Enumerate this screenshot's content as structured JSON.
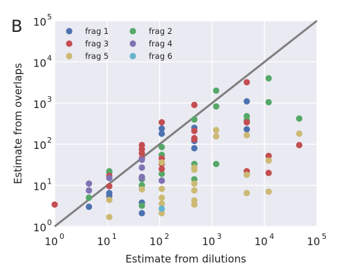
{
  "panel_label": "B",
  "chart_data": {
    "type": "scatter",
    "xlabel": "Estimate from dilutions",
    "ylabel": "Estimate from overlaps",
    "xscale": "log",
    "yscale": "log",
    "xlim": [
      1,
      100000
    ],
    "ylim": [
      1,
      100000
    ],
    "x_ticks": [
      {
        "base": "10",
        "exp": "0"
      },
      {
        "base": "10",
        "exp": "1"
      },
      {
        "base": "10",
        "exp": "2"
      },
      {
        "base": "10",
        "exp": "3"
      },
      {
        "base": "10",
        "exp": "4"
      },
      {
        "base": "10",
        "exp": "5"
      }
    ],
    "y_ticks": [
      {
        "base": "10",
        "exp": "0"
      },
      {
        "base": "10",
        "exp": "1"
      },
      {
        "base": "10",
        "exp": "2"
      },
      {
        "base": "10",
        "exp": "3"
      },
      {
        "base": "10",
        "exp": "4"
      },
      {
        "base": "10",
        "exp": "5"
      }
    ],
    "grid": true,
    "legend_position": "top-left",
    "reference_line": {
      "type": "identity",
      "color": "#808080"
    },
    "series": [
      {
        "name": "frag 1",
        "color": "#4C72B0",
        "points": [
          [
            4.5,
            3.0
          ],
          [
            11,
            5.5
          ],
          [
            11,
            6.5
          ],
          [
            46,
            2.1
          ],
          [
            46,
            3.8
          ],
          [
            110,
            180
          ],
          [
            110,
            240
          ],
          [
            110,
            13
          ],
          [
            460,
            80
          ],
          [
            460,
            120
          ],
          [
            460,
            250
          ],
          [
            4600,
            1100
          ],
          [
            4600,
            230
          ]
        ]
      },
      {
        "name": "frag 2",
        "color": "#55A868",
        "points": [
          [
            4.5,
            5
          ],
          [
            11,
            21
          ],
          [
            11,
            22
          ],
          [
            46,
            3.2
          ],
          [
            46,
            10
          ],
          [
            46,
            14
          ],
          [
            110,
            85
          ],
          [
            110,
            55
          ],
          [
            110,
            19
          ],
          [
            460,
            33
          ],
          [
            460,
            14
          ],
          [
            460,
            400
          ],
          [
            1200,
            2000
          ],
          [
            1200,
            830
          ],
          [
            1200,
            33
          ],
          [
            4600,
            480
          ],
          [
            4600,
            380
          ],
          [
            12000,
            4000
          ],
          [
            12000,
            1050
          ],
          [
            46000,
            420
          ]
        ]
      },
      {
        "name": "frag 3",
        "color": "#C44E52",
        "points": [
          [
            1,
            3.4
          ],
          [
            11,
            9.5
          ],
          [
            11,
            17
          ],
          [
            46,
            95
          ],
          [
            46,
            75
          ],
          [
            46,
            60
          ],
          [
            46,
            45
          ],
          [
            110,
            340
          ],
          [
            110,
            45
          ],
          [
            110,
            33
          ],
          [
            110,
            25
          ],
          [
            460,
            900
          ],
          [
            460,
            210
          ],
          [
            460,
            140
          ],
          [
            460,
            130
          ],
          [
            4600,
            3200
          ],
          [
            4600,
            340
          ],
          [
            4600,
            22
          ],
          [
            12000,
            52
          ],
          [
            12000,
            20
          ],
          [
            46000,
            95
          ]
        ]
      },
      {
        "name": "frag 4",
        "color": "#8172B2",
        "points": [
          [
            4.5,
            11
          ],
          [
            4.5,
            7.5
          ],
          [
            11,
            15
          ],
          [
            46,
            27
          ],
          [
            46,
            15
          ],
          [
            46,
            42
          ],
          [
            46,
            16
          ],
          [
            110,
            13
          ]
        ]
      },
      {
        "name": "frag 5",
        "color": "#CCB974",
        "points": [
          [
            11,
            1.7
          ],
          [
            11,
            4.4
          ],
          [
            46,
            8
          ],
          [
            110,
            2.1
          ],
          [
            110,
            3.6
          ],
          [
            110,
            5
          ],
          [
            110,
            8.2
          ],
          [
            110,
            36
          ],
          [
            460,
            3.4
          ],
          [
            460,
            4.3
          ],
          [
            460,
            7.5
          ],
          [
            460,
            11
          ],
          [
            460,
            24
          ],
          [
            460,
            27
          ],
          [
            1200,
            220
          ],
          [
            1200,
            155
          ],
          [
            4600,
            165
          ],
          [
            4600,
            6.5
          ],
          [
            4600,
            18
          ],
          [
            12000,
            7
          ],
          [
            12000,
            40
          ],
          [
            46000,
            180
          ]
        ]
      },
      {
        "name": "frag 6",
        "color": "#64B5CD",
        "points": [
          [
            110,
            2.7
          ]
        ]
      }
    ]
  }
}
